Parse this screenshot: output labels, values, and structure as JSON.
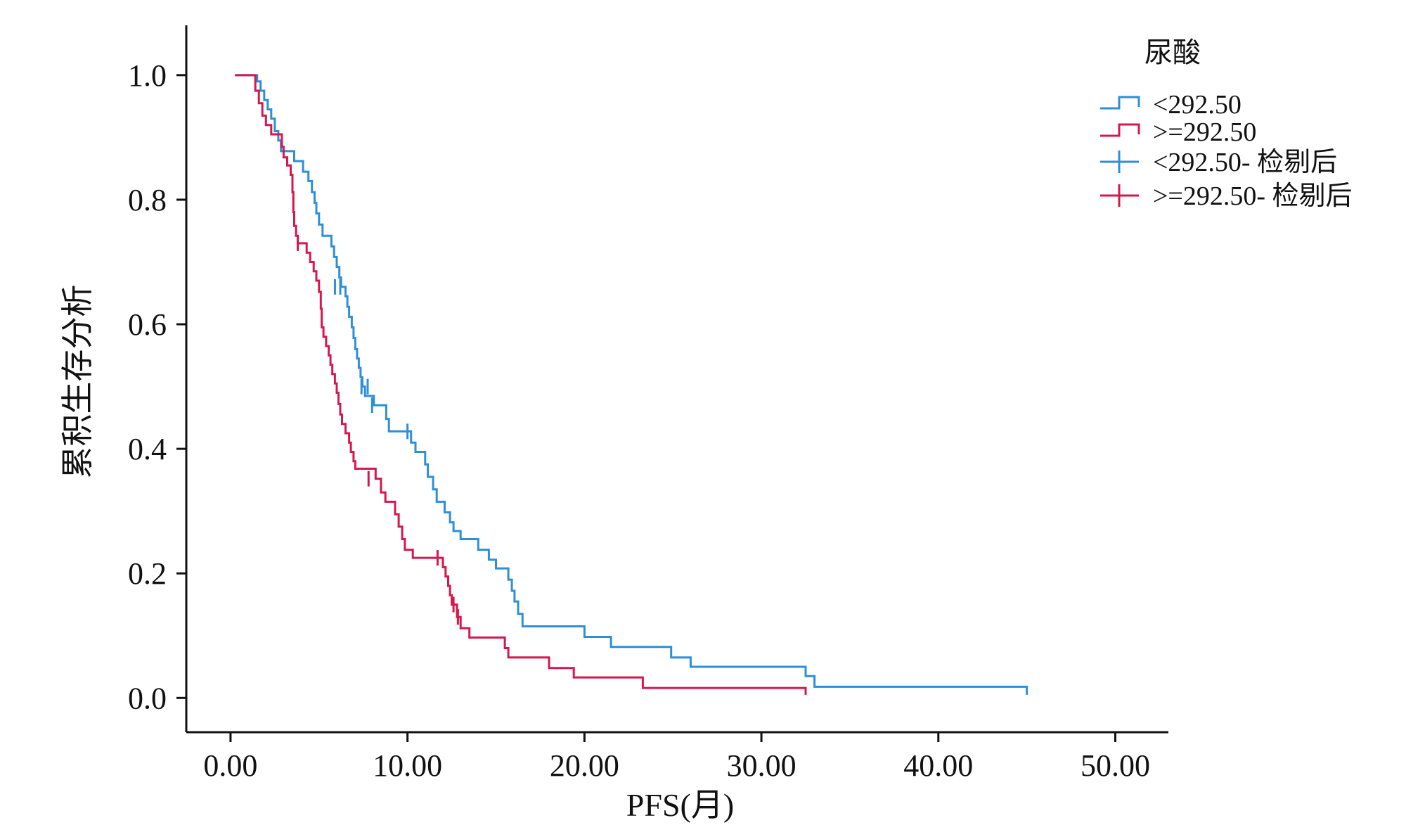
{
  "chart_data": {
    "type": "line",
    "subtype": "kaplan-meier step",
    "title": "",
    "xlabel": "PFS(月)",
    "ylabel": "累积生存分析",
    "xlim": [
      -2.5,
      53
    ],
    "ylim": [
      -0.055,
      1.08
    ],
    "x_ticks": [
      0,
      10,
      20,
      30,
      40,
      50
    ],
    "x_tick_labels": [
      "0.00",
      "10.00",
      "20.00",
      "30.00",
      "40.00",
      "50.00"
    ],
    "y_ticks": [
      0,
      0.2,
      0.4,
      0.6,
      0.8,
      1.0
    ],
    "y_tick_labels": [
      "0.0",
      "0.2",
      "0.4",
      "0.6",
      "0.8",
      "1.0"
    ],
    "grid": false,
    "legend_position": "top-right",
    "legend": {
      "title": "尿酸",
      "entries": [
        {
          "label": "<292.50",
          "kind": "step",
          "series": 0
        },
        {
          "label": ">=292.50",
          "kind": "step",
          "series": 1
        },
        {
          "label": "<292.50- 检剔后",
          "kind": "censor",
          "series": 0
        },
        {
          "label": ">=292.50- 检剔后",
          "kind": "censor",
          "series": 1
        }
      ]
    },
    "series": [
      {
        "name": "<292.50",
        "color": "#2e8fd8",
        "start": 1.0,
        "steps": [
          [
            1.5,
            0.99
          ],
          [
            1.7,
            0.975
          ],
          [
            1.9,
            0.96
          ],
          [
            2.1,
            0.945
          ],
          [
            2.3,
            0.93
          ],
          [
            2.5,
            0.91
          ],
          [
            2.7,
            0.895
          ],
          [
            2.85,
            0.878
          ],
          [
            3.6,
            0.862
          ],
          [
            4.1,
            0.845
          ],
          [
            4.4,
            0.83
          ],
          [
            4.6,
            0.812
          ],
          [
            4.75,
            0.795
          ],
          [
            4.85,
            0.778
          ],
          [
            5.0,
            0.76
          ],
          [
            5.2,
            0.742
          ],
          [
            5.7,
            0.725
          ],
          [
            5.85,
            0.708
          ],
          [
            6.0,
            0.692
          ],
          [
            6.15,
            0.675
          ],
          [
            6.25,
            0.66
          ],
          [
            6.5,
            0.645
          ],
          [
            6.6,
            0.628
          ],
          [
            6.7,
            0.612
          ],
          [
            6.85,
            0.595
          ],
          [
            6.95,
            0.578
          ],
          [
            7.05,
            0.56
          ],
          [
            7.15,
            0.545
          ],
          [
            7.25,
            0.53
          ],
          [
            7.35,
            0.515
          ],
          [
            7.45,
            0.5
          ],
          [
            7.6,
            0.485
          ],
          [
            8.1,
            0.47
          ],
          [
            8.8,
            0.448
          ],
          [
            8.95,
            0.428
          ],
          [
            10.2,
            0.41
          ],
          [
            10.45,
            0.395
          ],
          [
            11.0,
            0.375
          ],
          [
            11.15,
            0.355
          ],
          [
            11.45,
            0.335
          ],
          [
            11.65,
            0.315
          ],
          [
            12.1,
            0.298
          ],
          [
            12.4,
            0.282
          ],
          [
            12.6,
            0.268
          ],
          [
            13.0,
            0.255
          ],
          [
            14.0,
            0.238
          ],
          [
            14.6,
            0.222
          ],
          [
            15.0,
            0.208
          ],
          [
            15.7,
            0.19
          ],
          [
            15.9,
            0.172
          ],
          [
            16.05,
            0.155
          ],
          [
            16.25,
            0.135
          ],
          [
            16.5,
            0.115
          ],
          [
            20.0,
            0.098
          ],
          [
            21.5,
            0.082
          ],
          [
            24.9,
            0.065
          ],
          [
            26.0,
            0.05
          ],
          [
            32.5,
            0.035
          ],
          [
            33.0,
            0.018
          ],
          [
            45.0,
            0.005
          ]
        ],
        "censors": [
          [
            5.9,
            0.66
          ],
          [
            6.2,
            0.66
          ],
          [
            7.4,
            0.5
          ],
          [
            7.75,
            0.5
          ],
          [
            8.0,
            0.47
          ],
          [
            10.0,
            0.428
          ]
        ]
      },
      {
        "name": ">=292.50",
        "color": "#d4184e",
        "start": 1.0,
        "steps": [
          [
            1.4,
            0.975
          ],
          [
            1.6,
            0.955
          ],
          [
            1.8,
            0.935
          ],
          [
            2.0,
            0.92
          ],
          [
            2.3,
            0.905
          ],
          [
            2.9,
            0.885
          ],
          [
            3.0,
            0.868
          ],
          [
            3.2,
            0.855
          ],
          [
            3.4,
            0.84
          ],
          [
            3.5,
            0.812
          ],
          [
            3.55,
            0.78
          ],
          [
            3.6,
            0.758
          ],
          [
            3.7,
            0.742
          ],
          [
            3.8,
            0.73
          ],
          [
            4.3,
            0.715
          ],
          [
            4.5,
            0.7
          ],
          [
            4.7,
            0.685
          ],
          [
            4.85,
            0.67
          ],
          [
            5.0,
            0.652
          ],
          [
            5.1,
            0.625
          ],
          [
            5.15,
            0.595
          ],
          [
            5.25,
            0.58
          ],
          [
            5.4,
            0.565
          ],
          [
            5.55,
            0.55
          ],
          [
            5.65,
            0.535
          ],
          [
            5.75,
            0.52
          ],
          [
            5.9,
            0.505
          ],
          [
            6.0,
            0.49
          ],
          [
            6.1,
            0.472
          ],
          [
            6.2,
            0.455
          ],
          [
            6.3,
            0.44
          ],
          [
            6.5,
            0.425
          ],
          [
            6.7,
            0.41
          ],
          [
            6.8,
            0.395
          ],
          [
            6.95,
            0.38
          ],
          [
            7.05,
            0.368
          ],
          [
            8.2,
            0.352
          ],
          [
            8.5,
            0.33
          ],
          [
            8.75,
            0.315
          ],
          [
            9.3,
            0.295
          ],
          [
            9.5,
            0.275
          ],
          [
            9.7,
            0.255
          ],
          [
            9.85,
            0.238
          ],
          [
            10.3,
            0.225
          ],
          [
            12.0,
            0.21
          ],
          [
            12.15,
            0.195
          ],
          [
            12.3,
            0.18
          ],
          [
            12.4,
            0.165
          ],
          [
            12.5,
            0.15
          ],
          [
            12.8,
            0.13
          ],
          [
            13.0,
            0.112
          ],
          [
            13.5,
            0.097
          ],
          [
            15.5,
            0.08
          ],
          [
            15.7,
            0.065
          ],
          [
            18.0,
            0.048
          ],
          [
            19.4,
            0.033
          ],
          [
            23.3,
            0.016
          ],
          [
            32.5,
            0.005
          ]
        ],
        "censors": [
          [
            3.8,
            0.73
          ],
          [
            7.8,
            0.352
          ],
          [
            11.7,
            0.225
          ],
          [
            12.6,
            0.15
          ],
          [
            12.85,
            0.13
          ]
        ]
      }
    ]
  }
}
